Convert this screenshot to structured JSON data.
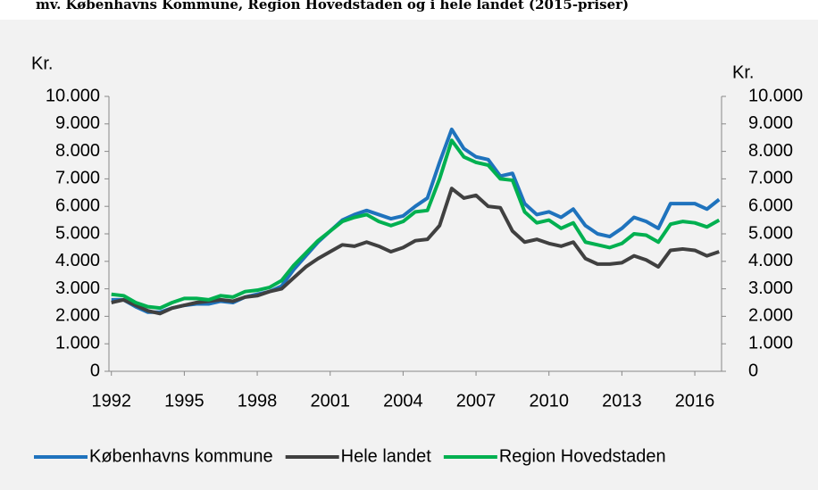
{
  "chart_data": {
    "type": "line",
    "title": "mv. Københavns Kommune, Region Hovedstaden og i hele landet (2015-priser)",
    "y_label": "Kr.",
    "y2_label": "Kr.",
    "x": [
      1992,
      1992.5,
      1993,
      1993.5,
      1994,
      1994.5,
      1995,
      1995.5,
      1996,
      1996.5,
      1997,
      1997.5,
      1998,
      1998.5,
      1999,
      1999.5,
      2000,
      2000.5,
      2001,
      2001.5,
      2002,
      2002.5,
      2003,
      2003.5,
      2004,
      2004.5,
      2005,
      2005.5,
      2006,
      2006.5,
      2007,
      2007.5,
      2008,
      2008.5,
      2009,
      2009.5,
      2010,
      2010.5,
      2011,
      2011.5,
      2012,
      2012.5,
      2013,
      2013.5,
      2014,
      2014.5,
      2015,
      2015.5,
      2016,
      2016.5,
      2017
    ],
    "xlim": [
      1991.9,
      2017.1
    ],
    "xticks": [
      1992,
      1995,
      1998,
      2001,
      2004,
      2007,
      2010,
      2013,
      2016
    ],
    "ylim": [
      0,
      10000
    ],
    "yticks": [
      {
        "value": 0,
        "label": "0"
      },
      {
        "value": 1000,
        "label": "1.000"
      },
      {
        "value": 2000,
        "label": "2.000"
      },
      {
        "value": 3000,
        "label": "3.000"
      },
      {
        "value": 4000,
        "label": "4.000"
      },
      {
        "value": 5000,
        "label": "5.000"
      },
      {
        "value": 6000,
        "label": "6.000"
      },
      {
        "value": 7000,
        "label": "7.000"
      },
      {
        "value": 8000,
        "label": "8.000"
      },
      {
        "value": 9000,
        "label": "9.000"
      },
      {
        "value": 10000,
        "label": "10.000"
      }
    ],
    "y2lim": [
      0,
      10000
    ],
    "y2ticks": [
      {
        "value": 0,
        "label": "0"
      },
      {
        "value": 1000,
        "label": "1.000"
      },
      {
        "value": 2000,
        "label": "2.000"
      },
      {
        "value": 3000,
        "label": "3.000"
      },
      {
        "value": 4000,
        "label": "4.000"
      },
      {
        "value": 5000,
        "label": "5.000"
      },
      {
        "value": 6000,
        "label": "6.000"
      },
      {
        "value": 7000,
        "label": "7.000"
      },
      {
        "value": 8000,
        "label": "8.000"
      },
      {
        "value": 9000,
        "label": "9.000"
      },
      {
        "value": 10000,
        "label": "10.000"
      }
    ],
    "legend": "bottom",
    "series": [
      {
        "name": "Københavns kommune",
        "color": "#1f73bd",
        "values": [
          2600,
          2600,
          2350,
          2150,
          2150,
          2300,
          2400,
          2450,
          2450,
          2550,
          2500,
          2700,
          2800,
          2900,
          3100,
          3700,
          4200,
          4700,
          5100,
          5500,
          5700,
          5850,
          5700,
          5550,
          5650,
          6000,
          6300,
          7600,
          8800,
          8100,
          7800,
          7700,
          7100,
          7200,
          6100,
          5700,
          5800,
          5600,
          5900,
          5300,
          5000,
          4900,
          5200,
          5600,
          5450,
          5200,
          6100,
          6100,
          6100,
          5900,
          6250
        ]
      },
      {
        "name": "Hele landet",
        "color": "#404040",
        "values": [
          2500,
          2600,
          2400,
          2200,
          2100,
          2300,
          2400,
          2500,
          2550,
          2600,
          2550,
          2700,
          2750,
          2900,
          3000,
          3400,
          3800,
          4100,
          4350,
          4600,
          4550,
          4700,
          4550,
          4350,
          4500,
          4750,
          4800,
          5300,
          6650,
          6300,
          6400,
          6000,
          5950,
          5100,
          4700,
          4800,
          4650,
          4550,
          4700,
          4100,
          3900,
          3900,
          3950,
          4200,
          4050,
          3800,
          4400,
          4450,
          4400,
          4200,
          4350
        ]
      },
      {
        "name": "Region Hovedstaden",
        "color": "#00b050",
        "values": [
          2800,
          2750,
          2500,
          2350,
          2300,
          2500,
          2650,
          2650,
          2600,
          2750,
          2700,
          2900,
          2950,
          3050,
          3300,
          3850,
          4300,
          4750,
          5100,
          5450,
          5600,
          5700,
          5450,
          5300,
          5450,
          5800,
          5850,
          7000,
          8400,
          7800,
          7600,
          7500,
          7000,
          6950,
          5800,
          5400,
          5500,
          5200,
          5400,
          4700,
          4600,
          4500,
          4650,
          5000,
          4950,
          4700,
          5350,
          5450,
          5400,
          5250,
          5500
        ]
      }
    ]
  }
}
